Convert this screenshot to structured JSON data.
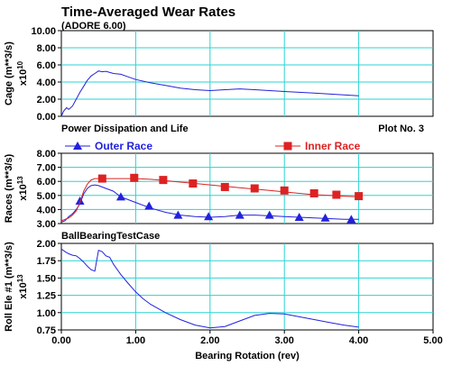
{
  "title": "Time-Averaged Wear Rates",
  "subtitle": "(ADORE 6.00)",
  "plot_no": "Plot No. 3",
  "colors": {
    "grid": "#2bd3d3",
    "series_blue": "#2222dd",
    "series_red": "#dd2222",
    "plot_bg": "#ffffff"
  },
  "chart_data": [
    {
      "type": "line",
      "id": "cage",
      "ylabel": "Cage (m**3/s)",
      "yexp": "x10",
      "yexp_power": "10",
      "ylim": [
        0,
        10
      ],
      "yticks": [
        "0.00",
        "2.00",
        "4.00",
        "6.00",
        "8.00",
        "10.00"
      ],
      "xlim": [
        0,
        5
      ],
      "series": [
        {
          "color": "blue",
          "marker": "none",
          "x": [
            0,
            0.03,
            0.07,
            0.1,
            0.15,
            0.2,
            0.25,
            0.3,
            0.35,
            0.4,
            0.45,
            0.5,
            0.55,
            0.6,
            0.7,
            0.8,
            0.9,
            1.0,
            1.2,
            1.4,
            1.6,
            1.8,
            2.0,
            2.2,
            2.4,
            2.6,
            2.8,
            3.0,
            3.2,
            3.4,
            3.6,
            3.8,
            4.0
          ],
          "y": [
            0,
            0.6,
            1.0,
            0.8,
            1.2,
            2.0,
            2.8,
            3.5,
            4.2,
            4.7,
            5.0,
            5.3,
            5.2,
            5.25,
            5.0,
            4.9,
            4.6,
            4.3,
            3.9,
            3.6,
            3.3,
            3.1,
            3.0,
            3.1,
            3.2,
            3.1,
            3.0,
            2.9,
            2.8,
            2.7,
            2.6,
            2.5,
            2.4
          ]
        }
      ]
    },
    {
      "type": "line",
      "id": "races",
      "title": "Power Dissipation and Life",
      "ylabel": "Races (m**3/s)",
      "yexp": "x10",
      "yexp_power": "13",
      "ylim": [
        3,
        8
      ],
      "yticks": [
        "3.00",
        "4.00",
        "5.00",
        "6.00",
        "7.00",
        "8.00"
      ],
      "xlim": [
        0,
        5
      ],
      "series": [
        {
          "name": "Outer Race",
          "color": "blue",
          "marker": "triangle",
          "x": [
            0,
            0.05,
            0.1,
            0.15,
            0.2,
            0.25,
            0.3,
            0.35,
            0.4,
            0.45,
            0.5,
            0.6,
            0.7,
            0.8,
            1.0,
            1.2,
            1.4,
            1.6,
            1.8,
            2.0,
            2.2,
            2.4,
            2.6,
            2.8,
            3.0,
            3.2,
            3.4,
            3.6,
            3.8,
            4.0
          ],
          "y": [
            3.1,
            3.2,
            3.5,
            3.7,
            4.0,
            4.4,
            5.1,
            5.5,
            5.7,
            5.75,
            5.7,
            5.5,
            5.3,
            4.9,
            4.5,
            4.1,
            3.8,
            3.6,
            3.5,
            3.45,
            3.5,
            3.6,
            3.6,
            3.55,
            3.5,
            3.45,
            3.4,
            3.35,
            3.3,
            3.3
          ],
          "markers_x": [
            0.25,
            0.8,
            1.18,
            1.57,
            1.98,
            2.4,
            2.8,
            3.2,
            3.55,
            3.9
          ],
          "markers_y": [
            4.6,
            4.9,
            4.25,
            3.6,
            3.5,
            3.6,
            3.6,
            3.45,
            3.4,
            3.3
          ]
        },
        {
          "name": "Inner Race",
          "color": "red",
          "marker": "square",
          "x": [
            0,
            0.05,
            0.1,
            0.15,
            0.2,
            0.25,
            0.3,
            0.35,
            0.4,
            0.45,
            0.5,
            0.6,
            0.8,
            1.0,
            1.2,
            1.4,
            1.6,
            1.8,
            2.0,
            2.2,
            2.4,
            2.6,
            2.8,
            3.0,
            3.2,
            3.4,
            3.6,
            3.8,
            4.0
          ],
          "y": [
            3.2,
            3.3,
            3.4,
            3.6,
            3.9,
            4.5,
            5.3,
            5.8,
            6.1,
            6.2,
            6.2,
            6.2,
            6.2,
            6.2,
            6.15,
            6.05,
            5.95,
            5.85,
            5.75,
            5.65,
            5.55,
            5.45,
            5.35,
            5.25,
            5.15,
            5.05,
            5.0,
            4.95,
            4.9
          ],
          "markers_x": [
            0.55,
            0.98,
            1.37,
            1.77,
            2.2,
            2.6,
            3.0,
            3.4,
            3.7,
            4.0
          ],
          "markers_y": [
            6.2,
            6.25,
            6.1,
            5.85,
            5.6,
            5.5,
            5.35,
            5.15,
            5.05,
            4.95
          ]
        }
      ]
    },
    {
      "type": "line",
      "id": "roll",
      "title": "BallBearingTestCase",
      "ylabel": "Roll Ele #1 (m**3/s)",
      "yexp": "x10",
      "yexp_power": "13",
      "ylim": [
        0.75,
        2.0
      ],
      "yticks": [
        "0.75",
        "1.00",
        "1.25",
        "1.50",
        "1.75",
        "2.00"
      ],
      "xlim": [
        0,
        5
      ],
      "xticks": [
        "0.00",
        "1.00",
        "2.00",
        "3.00",
        "4.00",
        "5.00"
      ],
      "xlabel": "Bearing Rotation (rev)",
      "series": [
        {
          "color": "blue",
          "marker": "none",
          "x": [
            0,
            0.05,
            0.1,
            0.15,
            0.2,
            0.25,
            0.3,
            0.35,
            0.4,
            0.45,
            0.5,
            0.55,
            0.6,
            0.65,
            0.7,
            0.8,
            0.9,
            1.0,
            1.1,
            1.2,
            1.4,
            1.6,
            1.8,
            2.0,
            2.2,
            2.4,
            2.6,
            2.8,
            3.0,
            3.2,
            3.4,
            3.6,
            3.8,
            4.0
          ],
          "y": [
            1.92,
            1.88,
            1.85,
            1.83,
            1.82,
            1.78,
            1.73,
            1.67,
            1.62,
            1.6,
            1.9,
            1.88,
            1.82,
            1.8,
            1.7,
            1.55,
            1.42,
            1.3,
            1.2,
            1.12,
            1.0,
            0.9,
            0.82,
            0.78,
            0.8,
            0.88,
            0.96,
            0.99,
            0.98,
            0.94,
            0.9,
            0.86,
            0.82,
            0.79
          ]
        }
      ]
    }
  ]
}
